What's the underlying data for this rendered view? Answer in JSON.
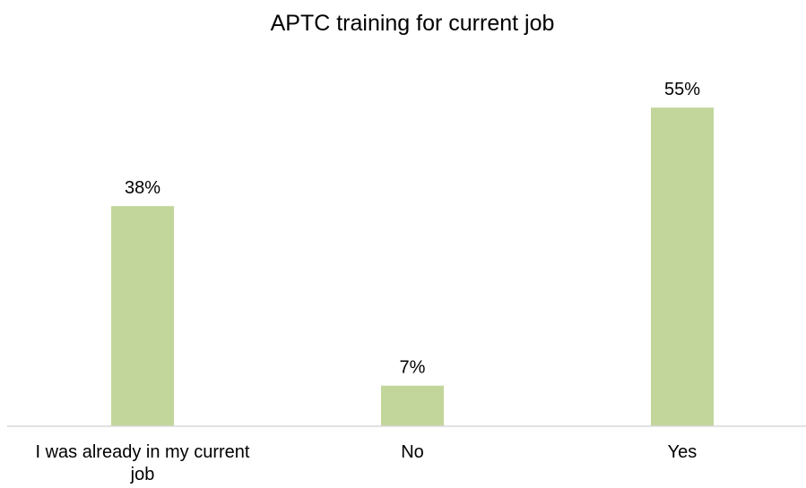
{
  "chart_data": {
    "type": "bar",
    "title": "APTC training  for current job",
    "categories": [
      "I was already in my current job",
      "No",
      "Yes"
    ],
    "category_label_lines": [
      [
        "I was already in my current",
        "job"
      ],
      [
        "No"
      ],
      [
        "Yes"
      ]
    ],
    "values": [
      38,
      7,
      55
    ],
    "data_labels": [
      "38%",
      "7%",
      "55%"
    ],
    "value_unit": "%",
    "xlabel": "",
    "ylabel": "",
    "ylim": [
      0,
      60
    ],
    "grid": false,
    "legend": "none",
    "bar_color": "#c2d69b",
    "axis_color": "#d9d9d9"
  }
}
